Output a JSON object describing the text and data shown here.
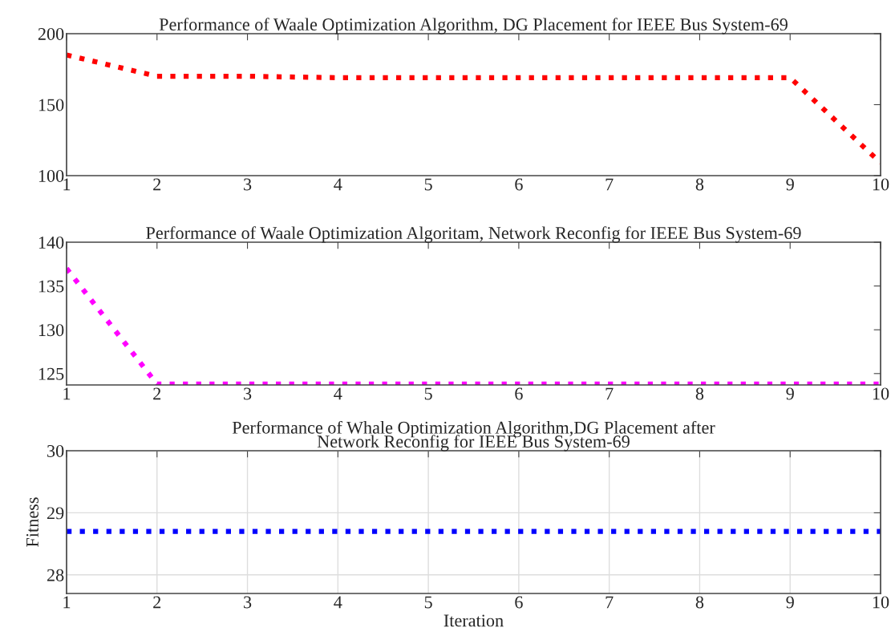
{
  "chart_data": [
    {
      "type": "line",
      "title": "Performance of Waale Optimization Algorithm, DG Placement for IEEE Bus System-69",
      "x": [
        1,
        2,
        3,
        4,
        5,
        6,
        7,
        8,
        9,
        10
      ],
      "series": [
        {
          "color": "#ff0000",
          "values": [
            185,
            170,
            170,
            169,
            169,
            169,
            169,
            169,
            169,
            109
          ]
        }
      ],
      "xlim": [
        1,
        10
      ],
      "xticks": [
        1,
        2,
        3,
        4,
        5,
        6,
        7,
        8,
        9,
        10
      ],
      "ylim": [
        100,
        200
      ],
      "yticks": [
        100,
        150,
        200
      ],
      "line_style": "dotted",
      "grid": false
    },
    {
      "type": "line",
      "title": "Performance of Waale Optimization Algoritam, Network Reconfig for IEEE Bus System-69",
      "x": [
        1,
        2,
        3,
        4,
        5,
        6,
        7,
        8,
        9,
        10
      ],
      "series": [
        {
          "color": "#ff00ff",
          "values": [
            137,
            123.8,
            123.8,
            123.8,
            123.8,
            123.8,
            123.8,
            123.8,
            123.8,
            123.8
          ]
        }
      ],
      "xlim": [
        1,
        10
      ],
      "xticks": [
        1,
        2,
        3,
        4,
        5,
        6,
        7,
        8,
        9,
        10
      ],
      "ylim": [
        123.7,
        140
      ],
      "yticks": [
        125,
        130,
        135,
        140
      ],
      "line_style": "dotted",
      "grid": false
    },
    {
      "type": "line",
      "title": "Performance of Whale Optimization Algorithm,DG Placement after\nNetwork Reconfig for IEEE Bus System-69",
      "xlabel": "Iteration",
      "ylabel": "Fitness",
      "x": [
        1,
        2,
        3,
        4,
        5,
        6,
        7,
        8,
        9,
        10
      ],
      "series": [
        {
          "color": "#0000ff",
          "values": [
            28.7,
            28.7,
            28.7,
            28.7,
            28.7,
            28.7,
            28.7,
            28.7,
            28.7,
            28.7
          ]
        }
      ],
      "xlim": [
        1,
        10
      ],
      "xticks": [
        1,
        2,
        3,
        4,
        5,
        6,
        7,
        8,
        9,
        10
      ],
      "ylim": [
        27.7,
        30
      ],
      "yticks": [
        28,
        29,
        30
      ],
      "line_style": "dotted",
      "grid": true
    }
  ]
}
